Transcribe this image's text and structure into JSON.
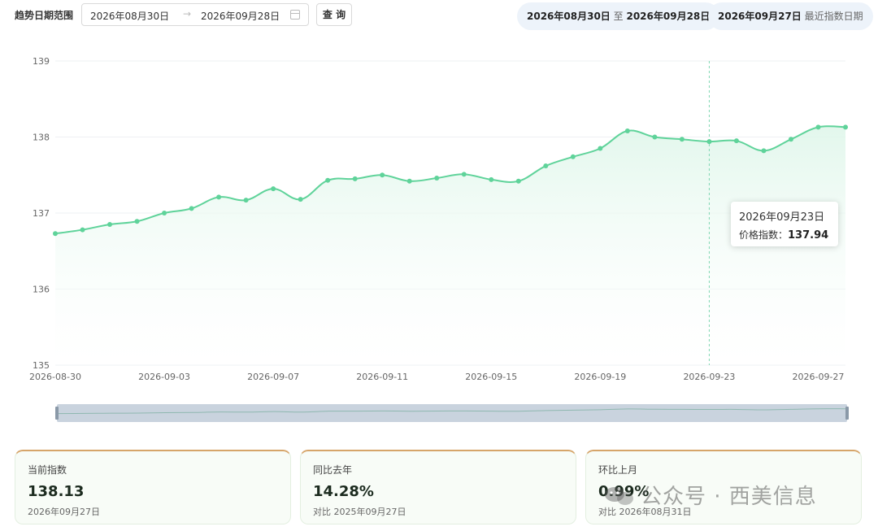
{
  "filter": {
    "range_label": "趋势日期范围",
    "start_date": "2026年08月30日",
    "end_date": "2026年09月28日",
    "arrow": "→",
    "query_button": "查 询"
  },
  "summary_pills": {
    "range_start": "2026年08月30日",
    "range_to": "至",
    "range_end": "2026年09月28日",
    "latest_date": "2026年09月27日",
    "latest_label": "最近指数日期"
  },
  "tooltip": {
    "date": "2026年09月23日",
    "label": "价格指数：",
    "value": "137.94"
  },
  "chart_data": {
    "type": "area",
    "x": [
      "2026-08-30",
      "2026-08-31",
      "2026-09-01",
      "2026-09-02",
      "2026-09-03",
      "2026-09-04",
      "2026-09-05",
      "2026-09-06",
      "2026-09-07",
      "2026-09-08",
      "2026-09-09",
      "2026-09-10",
      "2026-09-11",
      "2026-09-12",
      "2026-09-13",
      "2026-09-14",
      "2026-09-15",
      "2026-09-16",
      "2026-09-17",
      "2026-09-18",
      "2026-09-19",
      "2026-09-20",
      "2026-09-21",
      "2026-09-22",
      "2026-09-23",
      "2026-09-24",
      "2026-09-25",
      "2026-09-26",
      "2026-09-27",
      "2026-09-28"
    ],
    "values": [
      136.73,
      136.78,
      136.85,
      136.89,
      137.0,
      137.06,
      137.21,
      137.17,
      137.32,
      137.18,
      137.43,
      137.45,
      137.5,
      137.42,
      137.46,
      137.51,
      137.44,
      137.42,
      137.62,
      137.74,
      137.85,
      138.08,
      138.0,
      137.97,
      137.94,
      137.95,
      137.82,
      137.97,
      138.13,
      138.13
    ],
    "x_ticks": [
      "2026-08-30",
      "2026-09-03",
      "2026-09-07",
      "2026-09-11",
      "2026-09-15",
      "2026-09-19",
      "2026-09-23",
      "2026-09-27"
    ],
    "y_ticks": [
      "135",
      "136",
      "137",
      "138",
      "139"
    ],
    "ylim": [
      135,
      139
    ],
    "highlight_x": "2026-09-23",
    "line_color": "#5fd39a",
    "area_color": "#e6f8ef",
    "grid": true
  },
  "cards": [
    {
      "title": "当前指数",
      "value": "138.13",
      "sub": "2026年09月27日"
    },
    {
      "title": "同比去年",
      "value": "14.28%",
      "sub": "对比 2025年09月27日"
    },
    {
      "title": "环比上月",
      "value": "0.99%",
      "sub": "对比 2026年08月31日"
    }
  ],
  "watermark": {
    "text": "公众号 · 西美信息",
    "icon": "wechat-icon"
  }
}
